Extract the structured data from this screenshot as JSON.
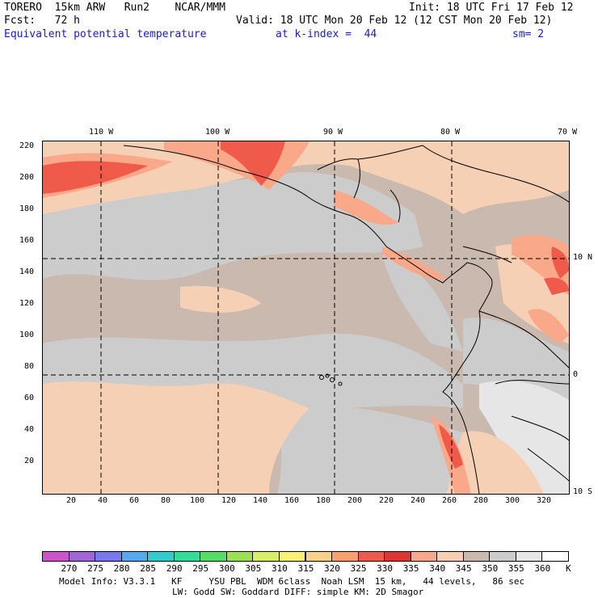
{
  "header": {
    "model_name": "TORERO  15km ARW   Run2    NCAR/MMM",
    "forecast": "Fcst:   72 h",
    "init": "Init: 18 UTC Fri 17 Feb 12",
    "valid": "Valid: 18 UTC Mon 20 Feb 12 (12 CST Mon 20 Feb 12)",
    "field": "Equivalent potential temperature",
    "level": "at k-index =  44",
    "smoothing": "sm= 2"
  },
  "map": {
    "lon_labels": [
      "110 W",
      "100 W",
      "90 W",
      "80 W",
      "70 W"
    ],
    "lat_labels": [
      "10 N",
      "0",
      "10 S"
    ],
    "y_ticks": [
      "220",
      "200",
      "180",
      "160",
      "140",
      "120",
      "100",
      "80",
      "60",
      "40",
      "20"
    ],
    "x_ticks": [
      "20",
      "40",
      "60",
      "80",
      "100",
      "120",
      "140",
      "160",
      "180",
      "200",
      "220",
      "240",
      "260",
      "280",
      "300",
      "320"
    ],
    "colors": {
      "background": "#c9b9ae",
      "gray": "#cccccc",
      "light_gray": "#e6e6e6",
      "peach": "#f5d0b4",
      "salmon": "#f9a98a",
      "red": "#f05a4b",
      "dark_red": "#e03530"
    }
  },
  "colorbar": {
    "labels": [
      "270",
      "275",
      "280",
      "285",
      "290",
      "295",
      "300",
      "305",
      "310",
      "315",
      "320",
      "325",
      "330",
      "335",
      "340",
      "345",
      "350",
      "355",
      "360",
      "K"
    ],
    "colors": [
      "#cc55cc",
      "#a066d6",
      "#7777ee",
      "#55aaee",
      "#33cccc",
      "#33dd99",
      "#55dd66",
      "#99e055",
      "#d8ee66",
      "#f8f077",
      "#f8d088",
      "#f8a070",
      "#f05a4b",
      "#e03530",
      "#f9a98a",
      "#f5d0b4",
      "#c9b9ae",
      "#cccccc",
      "#e6e6e6",
      "#ffffff"
    ]
  },
  "footer": {
    "line1": "Model Info: V3.3.1   KF     YSU PBL  WDM 6class  Noah LSM  15 km,   44 levels,   86 sec",
    "line2": "LW: Godd SW: Goddard DIFF: simple KM: 2D Smagor"
  }
}
